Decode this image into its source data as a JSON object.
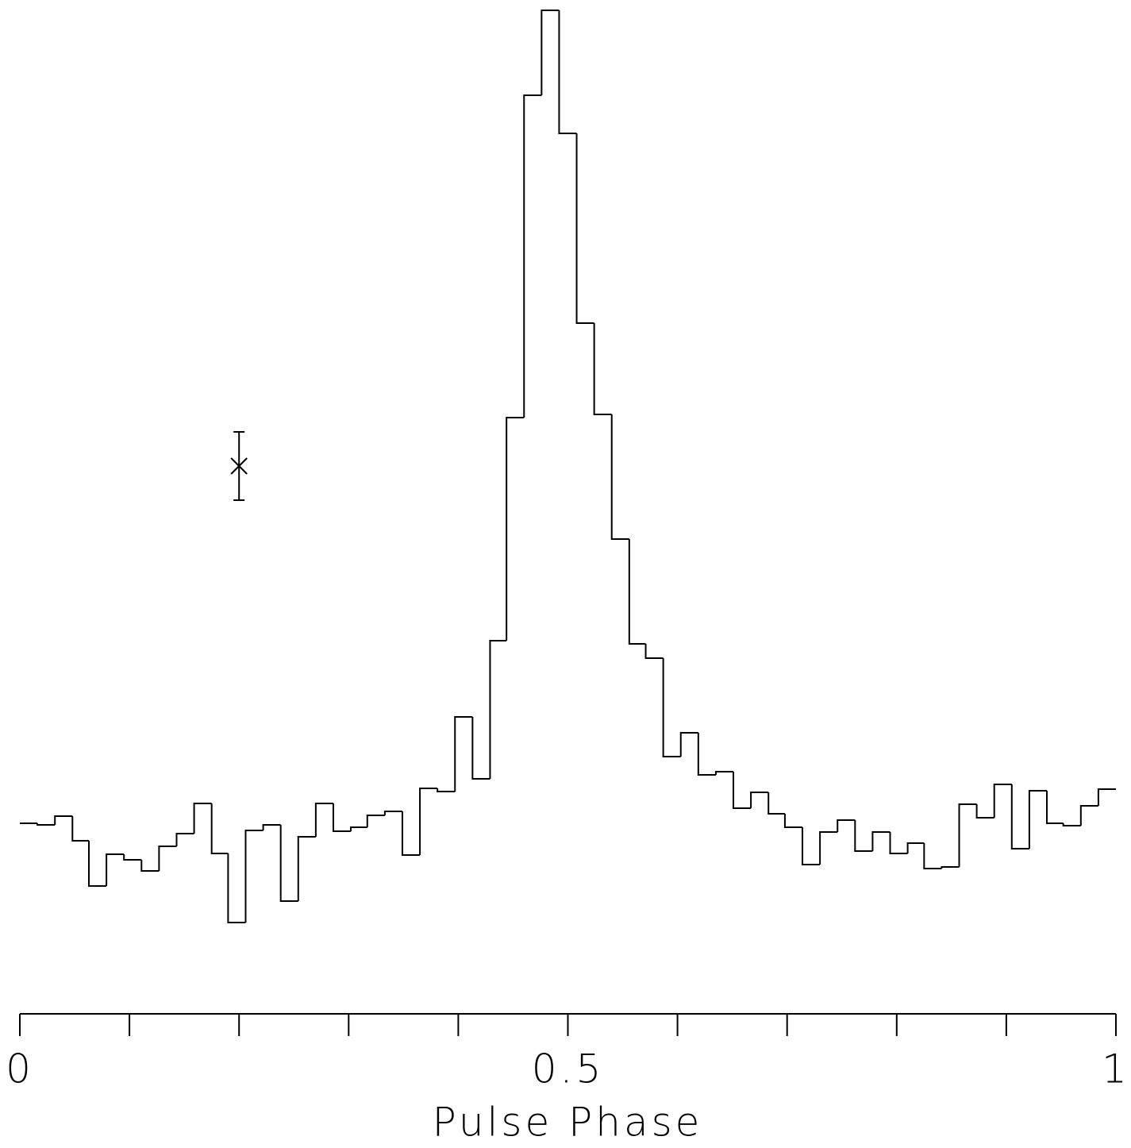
{
  "chart_data": {
    "type": "histogram",
    "xlabel": "Pulse Phase",
    "bins": [
      0,
      0.016,
      0.032,
      0.048,
      0.063,
      0.079,
      0.095,
      0.111,
      0.127,
      0.143,
      0.159,
      0.175,
      0.19,
      0.206,
      0.222,
      0.238,
      0.254,
      0.27,
      0.286,
      0.302,
      0.317,
      0.333,
      0.349,
      0.365,
      0.381,
      0.397,
      0.413,
      0.429,
      0.444,
      0.46,
      0.476,
      0.492,
      0.508,
      0.524,
      0.54,
      0.556,
      0.571,
      0.587,
      0.603,
      0.619,
      0.635,
      0.651,
      0.667,
      0.683,
      0.698,
      0.714,
      0.73,
      0.746,
      0.762,
      0.778,
      0.794,
      0.81,
      0.825,
      0.841,
      0.857,
      0.873,
      0.889,
      0.905,
      0.921,
      0.937,
      0.952,
      0.968,
      0.984,
      1
    ],
    "values": [
      24.0,
      23.8,
      24.9,
      21.8,
      16.1,
      20.1,
      19.4,
      18.0,
      21.1,
      22.7,
      26.5,
      20.2,
      11.5,
      23.1,
      23.8,
      14.2,
      22.3,
      26.5,
      23.0,
      23.5,
      25.0,
      25.5,
      20.0,
      28.4,
      28.0,
      37.4,
      29.6,
      47.0,
      75.1,
      115.7,
      126.4,
      110.9,
      87.0,
      75.5,
      59.8,
      46.6,
      44.8,
      32.4,
      35.4,
      30.1,
      30.5,
      25.9,
      27.9,
      25.2,
      23.5,
      18.8,
      22.9,
      24.4,
      20.5,
      22.9,
      20.2,
      21.5,
      18.3,
      18.5,
      26.4,
      24.7,
      28.9,
      20.8,
      28.1,
      24.0,
      23.7,
      26.2,
      28.3
    ],
    "color": "#000000",
    "xlim": [
      0,
      1
    ],
    "ylim": [
      0,
      127.7
    ],
    "xticks": [
      0,
      0.5,
      1
    ],
    "xminor_ticks": [
      0.1,
      0.2,
      0.3,
      0.4,
      0.6,
      0.7,
      0.8,
      0.9
    ],
    "error_marker": {
      "x": 0.2,
      "y": 69.0,
      "error": 4.3
    }
  }
}
